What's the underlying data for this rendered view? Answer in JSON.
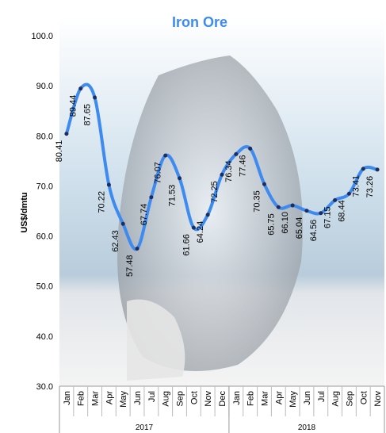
{
  "chart_data": {
    "type": "line",
    "title": "Iron Ore",
    "y_label": "US$/dmtu",
    "groups": [
      {
        "label": "2017",
        "categories": [
          "Jan",
          "Feb",
          "Mar",
          "Apr",
          "May",
          "Jun",
          "Jul",
          "Aug",
          "Sep",
          "Oct",
          "Nov",
          "Dec"
        ]
      },
      {
        "label": "2018",
        "categories": [
          "Jan",
          "Feb",
          "Mar",
          "Apr",
          "May",
          "Jun",
          "Jul",
          "Aug",
          "Sep",
          "Oct",
          "Nov"
        ]
      }
    ],
    "series": [
      {
        "name": "Iron Ore",
        "color": "#3d8bf0",
        "marker_color": "#1f2d5c",
        "values": [
          80.41,
          89.44,
          87.65,
          70.22,
          62.43,
          57.48,
          67.74,
          76.07,
          71.53,
          61.66,
          64.24,
          72.25,
          76.34,
          77.46,
          70.35,
          65.75,
          66.1,
          65.04,
          64.56,
          67.15,
          68.44,
          73.41,
          73.26
        ],
        "value_labels": [
          "80.41",
          "89.44",
          "87.65",
          "70.22",
          "62.43",
          "57.48",
          "67.74",
          "76.07",
          "71.53",
          "61.66",
          "64.24",
          "72.25",
          "76.34",
          "77.46",
          "70.35",
          "65.75",
          "66.10",
          "65.04",
          "64.56",
          "67.15",
          "68.44",
          "73.41",
          "73.26"
        ]
      }
    ],
    "ylim": [
      30,
      100
    ],
    "yticks": [
      {
        "value": 30,
        "label": "30.0"
      },
      {
        "value": 40,
        "label": "40.0"
      },
      {
        "value": 50,
        "label": "50.0"
      },
      {
        "value": 60,
        "label": "60.0"
      },
      {
        "value": 70,
        "label": "70.0"
      },
      {
        "value": 80,
        "label": "80.0"
      },
      {
        "value": 90,
        "label": "90.0"
      },
      {
        "value": 100,
        "label": "100.0"
      }
    ],
    "grid": false
  }
}
